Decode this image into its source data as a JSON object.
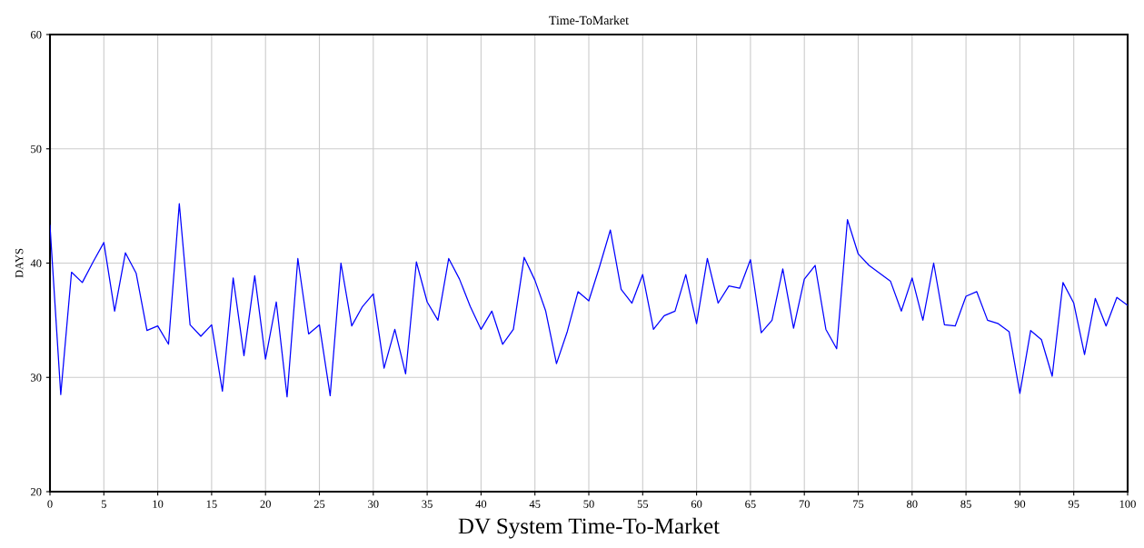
{
  "chart_data": {
    "type": "line",
    "title": "Time-ToMarket",
    "xlabel": "DV System Time-To-Market",
    "ylabel": "DAYS",
    "x": [
      0,
      1,
      2,
      3,
      4,
      5,
      6,
      7,
      8,
      9,
      10,
      11,
      12,
      13,
      14,
      15,
      16,
      17,
      18,
      19,
      20,
      21,
      22,
      23,
      24,
      25,
      26,
      27,
      28,
      29,
      30,
      31,
      32,
      33,
      34,
      35,
      36,
      37,
      38,
      39,
      40,
      41,
      42,
      43,
      44,
      45,
      46,
      47,
      48,
      49,
      50,
      51,
      52,
      53,
      54,
      55,
      56,
      57,
      58,
      59,
      60,
      61,
      62,
      63,
      64,
      65,
      66,
      67,
      68,
      69,
      70,
      71,
      72,
      73,
      74,
      75,
      76,
      77,
      78,
      79,
      80,
      81,
      82,
      83,
      84,
      85,
      86,
      87,
      88,
      89,
      90,
      91,
      92,
      93,
      94,
      95,
      96,
      97,
      98,
      99,
      100
    ],
    "series": [
      {
        "color": "#0000ff",
        "values": [
          43.3,
          28.5,
          39.2,
          38.3,
          40.1,
          41.8,
          35.8,
          40.9,
          39.1,
          34.1,
          34.5,
          32.9,
          45.2,
          34.6,
          33.6,
          34.6,
          28.8,
          38.7,
          31.9,
          38.9,
          31.6,
          36.6,
          28.3,
          40.4,
          33.8,
          34.6,
          28.4,
          40.0,
          34.5,
          36.2,
          37.3,
          30.8,
          34.2,
          30.3,
          40.1,
          36.6,
          35.0,
          40.4,
          38.6,
          36.2,
          34.2,
          35.8,
          32.9,
          34.2,
          40.5,
          38.5,
          35.8,
          31.2,
          34.0,
          37.5,
          36.7,
          39.7,
          42.9,
          37.7,
          36.5,
          39.0,
          34.2,
          35.4,
          35.8,
          39.0,
          34.7,
          40.4,
          36.5,
          38.0,
          37.8,
          40.3,
          33.9,
          35.0,
          39.5,
          34.3,
          38.6,
          39.8,
          34.2,
          32.5,
          43.8,
          40.8,
          39.8,
          39.1,
          38.4,
          35.8,
          38.7,
          35.0,
          40.0,
          34.6,
          34.5,
          37.1,
          37.5,
          35.0,
          34.7,
          34.0,
          28.6,
          34.1,
          33.3,
          30.1,
          38.3,
          36.5,
          32.0,
          36.9,
          34.5,
          37.0,
          36.3
        ]
      }
    ],
    "xlim": [
      0,
      100
    ],
    "xticks": [
      0,
      5,
      10,
      15,
      20,
      25,
      30,
      35,
      40,
      45,
      50,
      55,
      60,
      65,
      70,
      75,
      80,
      85,
      90,
      95,
      100
    ],
    "ylim": [
      20,
      60
    ],
    "yticks": [
      20,
      30,
      40,
      50,
      60
    ],
    "grid": true,
    "marker": "none",
    "line_style": "solid"
  }
}
